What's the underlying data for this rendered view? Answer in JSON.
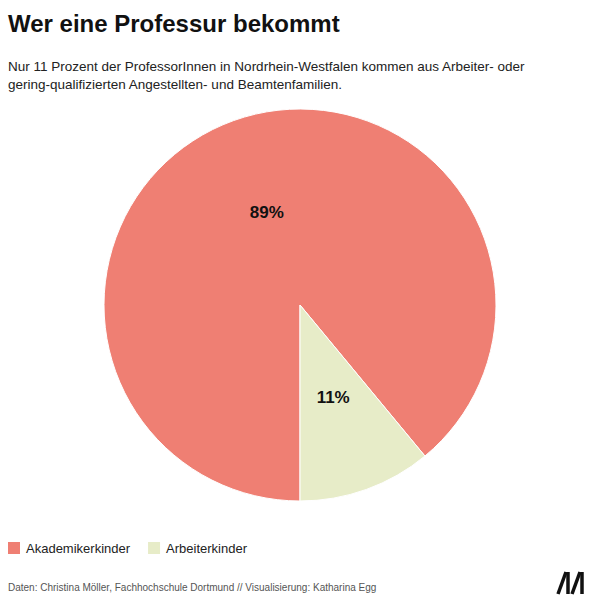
{
  "chart_data": {
    "type": "pie",
    "title": "Wer eine Professur bekommt",
    "subtitle": [
      "Nur 11 Prozent der ProfessorInnen in Nordrhein-Westfalen kommen aus Arbeiter- oder",
      "gering-qualifizierten Angestellten- und Beamtenfamilien."
    ],
    "categories": [
      "Akademikerkinder",
      "Arbeiterkinder"
    ],
    "values": [
      89,
      11
    ],
    "value_labels": [
      "89%",
      "11%"
    ],
    "colors": [
      "#ef7f73",
      "#e7ecc8"
    ],
    "data_labels": true,
    "legend": "bottom-left",
    "source": "Daten: Christina Möller, Fachhochschule Dortmund // Visualisierung: Katharina Egg"
  }
}
